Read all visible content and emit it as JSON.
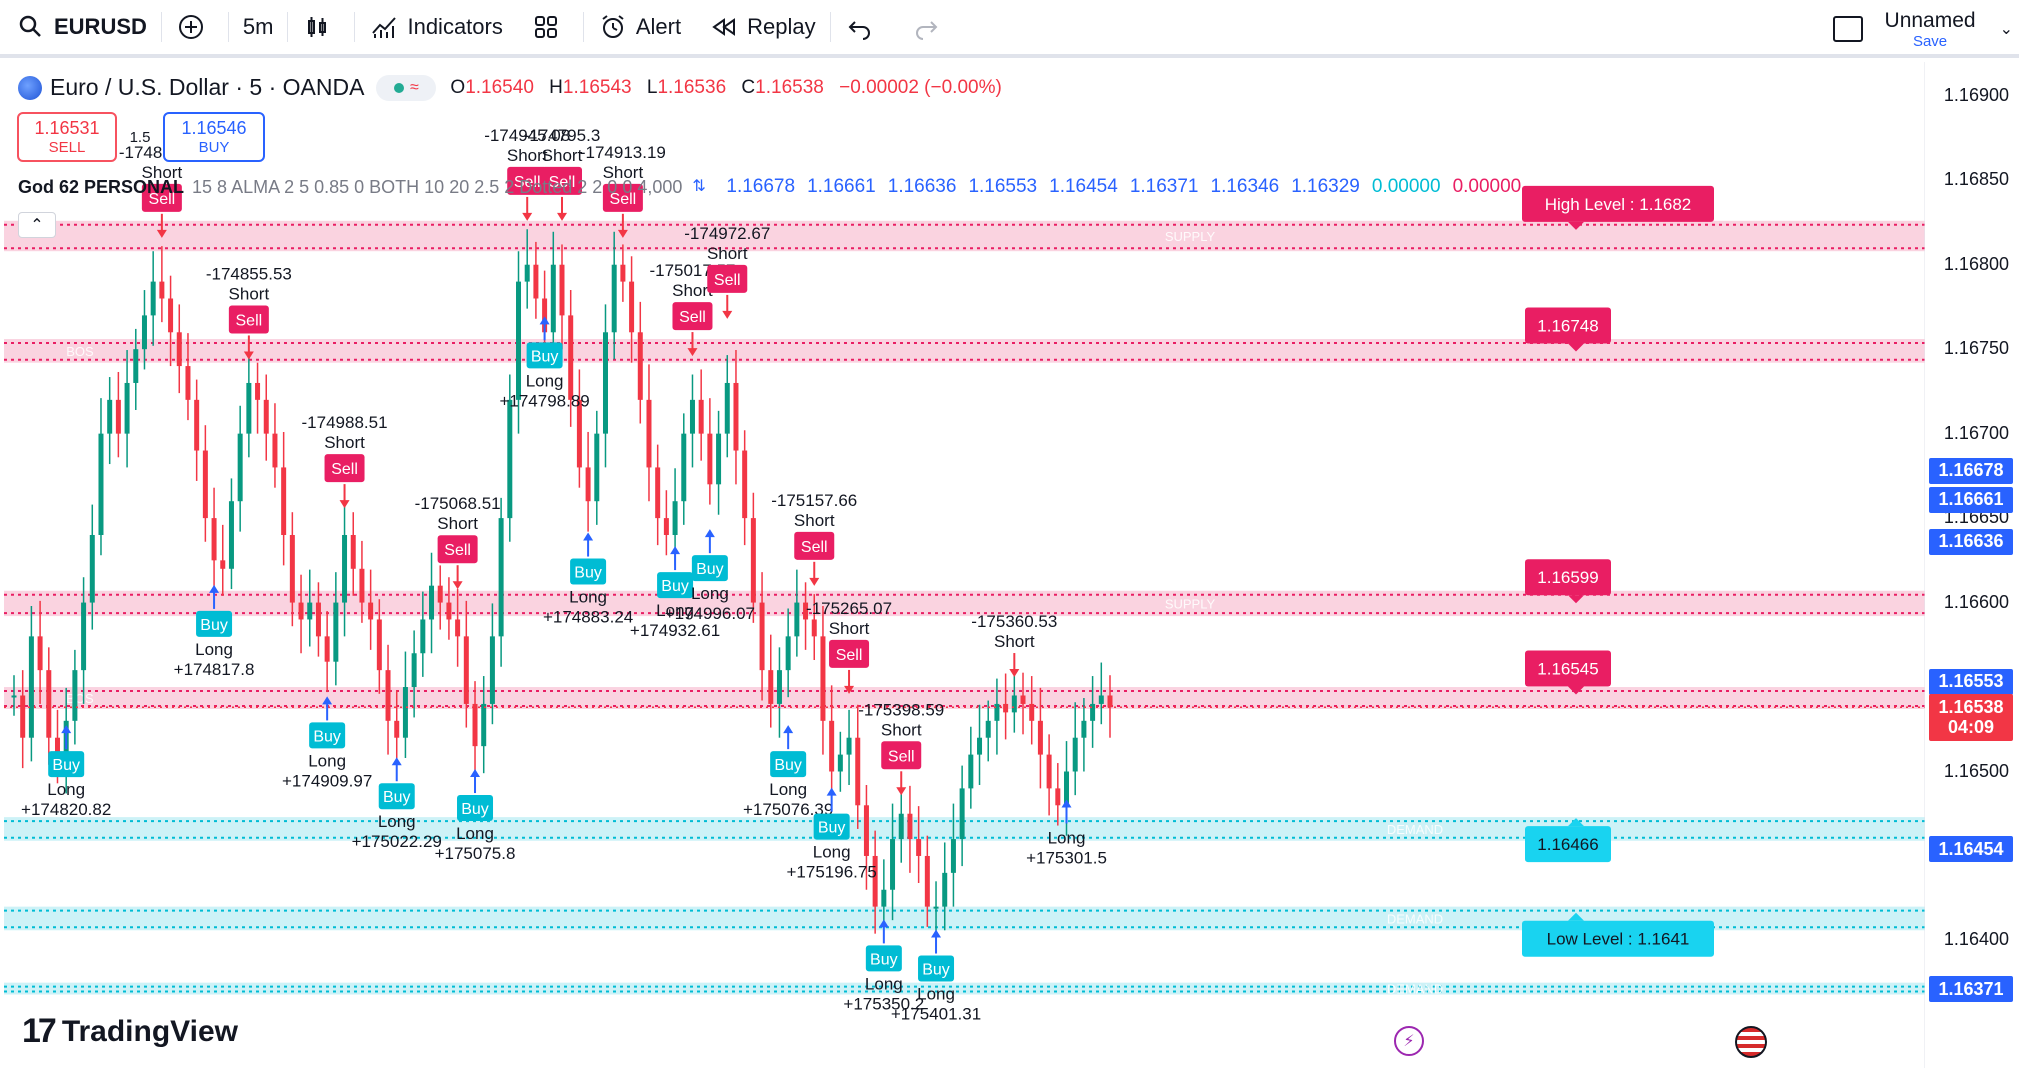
{
  "toolbar": {
    "symbol": "EURUSD",
    "interval": "5m",
    "indicators_label": "Indicators",
    "alert_label": "Alert",
    "replay_label": "Replay",
    "layout_name": "Unnamed",
    "save_label": "Save"
  },
  "legend": {
    "title": "Euro / U.S. Dollar · 5 · OANDA",
    "ohlc": {
      "o_label": "O",
      "o": "1.16540",
      "h_label": "H",
      "h": "1.16543",
      "l_label": "L",
      "l": "1.16536",
      "c_label": "C",
      "c": "1.16538",
      "change": "−0.00002 (−0.00%)"
    },
    "sell_price": "1.16531",
    "sell_label": "SELL",
    "spread": "1.5",
    "buy_price": "1.16546",
    "buy_label": "BUY",
    "indicator_name": "God 62 PERSONAL",
    "indicator_params": "15 8 ALMA 2 5 0.85 0 BOTH 10 20 2.5 2 Dotted 2 2 0 0 4,000",
    "indicator_values_blue": [
      "1.16678",
      "1.16661",
      "1.16636",
      "1.16553",
      "1.16454",
      "1.16371",
      "1.16346",
      "1.16329"
    ],
    "indicator_value_cyan": "0.00000",
    "indicator_value_red": "0.00000"
  },
  "colors": {
    "up": "#089981",
    "down": "#f23645",
    "blue": "#2962ff",
    "cyan": "#00bcd4",
    "pink": "#e91e63",
    "supply_zone": "#f8bbd0",
    "demand_zone": "#b2ebf2",
    "sell_tag": "#e91e63",
    "buy_tag": "#00bcd4"
  },
  "price_axis": {
    "ticks": [
      "1.16900",
      "1.16850",
      "1.16800",
      "1.16750",
      "1.16700",
      "1.16650",
      "1.16600",
      "1.16550",
      "1.16500",
      "1.16450",
      "1.16400"
    ],
    "tags": [
      {
        "text": "1.16678",
        "price": 1.16678,
        "color": "#2962ff"
      },
      {
        "text": "1.16661",
        "price": 1.16661,
        "color": "#2962ff"
      },
      {
        "text": "1.16636",
        "price": 1.16636,
        "color": "#2962ff"
      },
      {
        "text": "1.16553",
        "price": 1.16553,
        "color": "#2962ff"
      },
      {
        "text": "1.16538",
        "price": 1.16538,
        "color": "#f23645"
      },
      {
        "text": "04:09",
        "price": 1.16526,
        "color": "#f23645"
      },
      {
        "text": "1.16454",
        "price": 1.16454,
        "color": "#2962ff"
      },
      {
        "text": "1.16371",
        "price": 1.16371,
        "color": "#2962ff"
      }
    ]
  },
  "zones": [
    {
      "kind": "supply",
      "label": "SUPPLY",
      "top": 1.16826,
      "bottom": 1.16808
    },
    {
      "kind": "supply",
      "label": "BOS",
      "top": 1.16756,
      "bottom": 1.16742
    },
    {
      "kind": "supply",
      "label": "SUPPLY",
      "top": 1.16607,
      "bottom": 1.16592
    },
    {
      "kind": "supply",
      "label": "BOS",
      "top": 1.1655,
      "bottom": 1.16537
    },
    {
      "kind": "demand",
      "label": "DEMAND",
      "top": 1.16473,
      "bottom": 1.16459
    },
    {
      "kind": "demand",
      "label": "DEMAND",
      "top": 1.1642,
      "bottom": 1.16406
    },
    {
      "kind": "demand",
      "label": "DEMAND",
      "top": 1.16375,
      "bottom": 1.16368
    }
  ],
  "level_tags": [
    {
      "text": "High Level : 1.1682",
      "price": 1.16836,
      "kind": "sell"
    },
    {
      "text": "1.16748",
      "price": 1.16764,
      "kind": "sell"
    },
    {
      "text": "1.16599",
      "price": 1.16615,
      "kind": "sell"
    },
    {
      "text": "1.16545",
      "price": 1.16561,
      "kind": "sell"
    },
    {
      "text": "1.16466",
      "price": 1.16457,
      "kind": "buy"
    },
    {
      "text": "Low  Level : 1.1641",
      "price": 1.16401,
      "kind": "buy"
    }
  ],
  "signals": [
    {
      "type": "buy",
      "bar": 6,
      "price": 1.16531,
      "label": "Buy",
      "dir": "Long",
      "pnl": "+174820.82"
    },
    {
      "type": "sell",
      "bar": 17,
      "price": 1.1681,
      "label": "Sell",
      "dir": "Short",
      "pnl": "-174835.73"
    },
    {
      "type": "buy",
      "bar": 23,
      "price": 1.16614,
      "label": "Buy",
      "dir": "Long",
      "pnl": "+174817.8"
    },
    {
      "type": "sell",
      "bar": 27,
      "price": 1.16738,
      "label": "Sell",
      "dir": "Short",
      "pnl": "-174855.53"
    },
    {
      "type": "buy",
      "bar": 36,
      "price": 1.16548,
      "label": "Buy",
      "dir": "Long",
      "pnl": "+174909.97"
    },
    {
      "type": "sell",
      "bar": 38,
      "price": 1.1665,
      "label": "Sell",
      "dir": "Short",
      "pnl": "-174988.51"
    },
    {
      "type": "buy",
      "bar": 44,
      "price": 1.16512,
      "label": "Buy",
      "dir": "Long",
      "pnl": "+175022.29"
    },
    {
      "type": "sell",
      "bar": 51,
      "price": 1.16602,
      "label": "Sell",
      "dir": "Short",
      "pnl": "-175068.51"
    },
    {
      "type": "buy",
      "bar": 53,
      "price": 1.16505,
      "label": "Buy",
      "dir": "Long",
      "pnl": "+175075.8"
    },
    {
      "type": "sell",
      "bar": 59,
      "price": 1.1682,
      "label": "Sell",
      "dir": "Short",
      "pnl": "-174945.08"
    },
    {
      "type": "buy",
      "bar": 61,
      "price": 1.16773,
      "label": "Buy",
      "dir": "Long",
      "pnl": "+174798.89"
    },
    {
      "type": "sell",
      "bar": 63,
      "price": 1.1682,
      "label": "Sell",
      "dir": "Short",
      "pnl": "-174795.3"
    },
    {
      "type": "buy",
      "bar": 66,
      "price": 1.16645,
      "label": "Buy",
      "dir": "Long",
      "pnl": "+174883.24"
    },
    {
      "type": "sell",
      "bar": 70,
      "price": 1.1681,
      "label": "Sell",
      "dir": "Short",
      "pnl": "-174913.19"
    },
    {
      "type": "buy",
      "bar": 76,
      "price": 1.16637,
      "label": "Buy",
      "dir": "Long",
      "pnl": "+174932.61"
    },
    {
      "type": "sell",
      "bar": 78,
      "price": 1.1674,
      "label": "Sell",
      "dir": "Short",
      "pnl": "-175017.57"
    },
    {
      "type": "buy",
      "bar": 80,
      "price": 1.16647,
      "label": "Buy",
      "dir": "Long",
      "pnl": "+174996.07"
    },
    {
      "type": "sell",
      "bar": 82,
      "price": 1.16762,
      "label": "Sell",
      "dir": "Short",
      "pnl": "-174972.67"
    },
    {
      "type": "buy",
      "bar": 89,
      "price": 1.16531,
      "label": "Buy",
      "dir": "Long",
      "pnl": "+175076.39"
    },
    {
      "type": "sell",
      "bar": 92,
      "price": 1.16604,
      "label": "Sell",
      "dir": "Short",
      "pnl": "-175157.66"
    },
    {
      "type": "buy",
      "bar": 94,
      "price": 1.16494,
      "label": "Buy",
      "dir": "Long",
      "pnl": "+175196.75"
    },
    {
      "type": "sell",
      "bar": 96,
      "price": 1.1654,
      "label": "Sell",
      "dir": "Short",
      "pnl": "-175265.07"
    },
    {
      "type": "buy",
      "bar": 100,
      "price": 1.16416,
      "label": "Buy",
      "dir": "Long",
      "pnl": "+175350.2"
    },
    {
      "type": "sell",
      "bar": 102,
      "price": 1.1648,
      "label": "Sell",
      "dir": "Short",
      "pnl": "-175398.59"
    },
    {
      "type": "buy",
      "bar": 106,
      "price": 1.1641,
      "label": "Buy",
      "dir": "Long",
      "pnl": "+175401.31"
    },
    {
      "type": "sell",
      "bar": 115,
      "price": 1.1655,
      "label": "",
      "dir": "Short",
      "pnl": "-175360.53"
    },
    {
      "type": "buy",
      "bar": 121,
      "price": 1.16487,
      "label": "",
      "dir": "Long",
      "pnl": "+175301.5"
    }
  ],
  "price_path": [
    1.16545,
    1.1652,
    1.1658,
    1.1656,
    1.1652,
    1.16505,
    1.1653,
    1.1656,
    1.166,
    1.1664,
    1.167,
    1.1672,
    1.167,
    1.1673,
    1.1675,
    1.1677,
    1.1679,
    1.1678,
    1.1676,
    1.1674,
    1.1672,
    1.1669,
    1.1665,
    1.16625,
    1.1662,
    1.1666,
    1.167,
    1.1673,
    1.1672,
    1.167,
    1.1668,
    1.1664,
    1.166,
    1.1659,
    1.166,
    1.1658,
    1.16565,
    1.166,
    1.1664,
    1.1662,
    1.166,
    1.1659,
    1.1656,
    1.1653,
    1.1652,
    1.1655,
    1.1657,
    1.1659,
    1.1661,
    1.166,
    1.1659,
    1.1658,
    1.1654,
    1.16515,
    1.1654,
    1.1658,
    1.1665,
    1.1672,
    1.1679,
    1.168,
    1.1678,
    1.1676,
    1.168,
    1.1677,
    1.1672,
    1.1668,
    1.1666,
    1.167,
    1.1676,
    1.168,
    1.1679,
    1.1676,
    1.1672,
    1.1668,
    1.1665,
    1.1664,
    1.1666,
    1.167,
    1.1672,
    1.167,
    1.1667,
    1.167,
    1.1673,
    1.1669,
    1.1665,
    1.166,
    1.1656,
    1.1654,
    1.1656,
    1.1658,
    1.166,
    1.1659,
    1.1658,
    1.1653,
    1.165,
    1.1651,
    1.1652,
    1.1648,
    1.1645,
    1.1642,
    1.1643,
    1.1646,
    1.16475,
    1.1646,
    1.1645,
    1.1642,
    1.1642,
    1.1644,
    1.1646,
    1.1649,
    1.1651,
    1.1652,
    1.1653,
    1.1654,
    1.16535,
    1.16545,
    1.1654,
    1.1653,
    1.1651,
    1.1649,
    1.1648,
    1.165,
    1.1652,
    1.1653,
    1.1654,
    1.16545,
    1.16538
  ]
}
